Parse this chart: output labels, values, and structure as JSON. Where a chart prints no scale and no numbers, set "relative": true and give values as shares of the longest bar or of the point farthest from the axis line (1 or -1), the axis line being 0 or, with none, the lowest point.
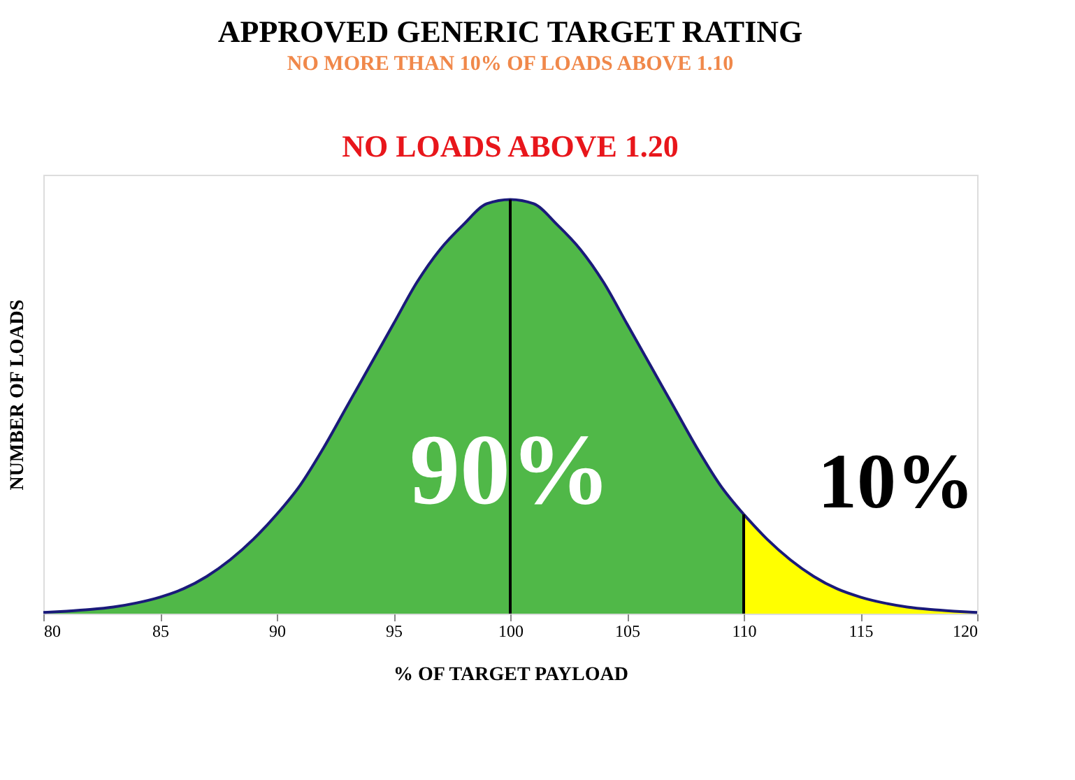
{
  "chart_data": {
    "type": "area",
    "title": "APPROVED GENERIC TARGET RATING",
    "subtitle": "NO MORE THAN 10% OF LOADS ABOVE 1.10",
    "xlabel": "% OF TARGET PAYLOAD",
    "ylabel": "NUMBER OF LOADS",
    "relative": true,
    "xlim": [
      80,
      120
    ],
    "xticks": [
      80,
      85,
      90,
      95,
      100,
      105,
      110,
      115,
      120
    ],
    "grid": false,
    "series": [
      {
        "color": "#50b848",
        "x": [
          80,
          81,
          82,
          83,
          84,
          85,
          86,
          87,
          88,
          89,
          90,
          91,
          92,
          93,
          94,
          95,
          96,
          97,
          98,
          99,
          100,
          101,
          102,
          103,
          104,
          105,
          106,
          107,
          108,
          109,
          110
        ],
        "values": [
          0.003,
          0.006,
          0.01,
          0.016,
          0.026,
          0.04,
          0.06,
          0.09,
          0.13,
          0.18,
          0.24,
          0.31,
          0.4,
          0.5,
          0.6,
          0.7,
          0.8,
          0.88,
          0.94,
          0.99,
          1,
          0.99,
          0.94,
          0.88,
          0.8,
          0.7,
          0.6,
          0.5,
          0.4,
          0.31,
          0.24
        ]
      },
      {
        "color": "#ffff00",
        "x": [
          110,
          111,
          112,
          113,
          114,
          115,
          116,
          117,
          118,
          119,
          120
        ],
        "values": [
          0.24,
          0.18,
          0.13,
          0.09,
          0.06,
          0.04,
          0.026,
          0.016,
          0.01,
          0.006,
          0.003
        ]
      }
    ],
    "ref_lines": [
      {
        "axis": "x",
        "value": 100,
        "color": "#000000"
      },
      {
        "axis": "x",
        "value": 110,
        "color": "#000000"
      }
    ],
    "annotations": [
      "NO LOADS ABOVE 1.20",
      "90%",
      "10%"
    ]
  }
}
